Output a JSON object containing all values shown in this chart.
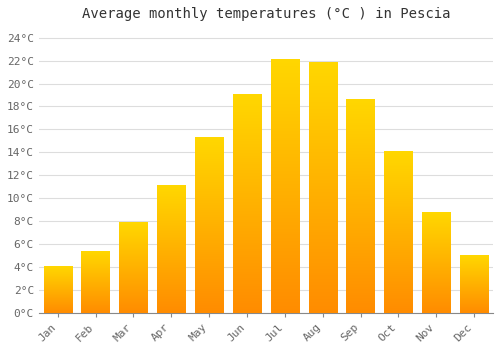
{
  "title": "Average monthly temperatures (°C ) in Pescia",
  "months": [
    "Jan",
    "Feb",
    "Mar",
    "Apr",
    "May",
    "Jun",
    "Jul",
    "Aug",
    "Sep",
    "Oct",
    "Nov",
    "Dec"
  ],
  "values": [
    4.1,
    5.4,
    7.9,
    11.1,
    15.3,
    19.1,
    22.1,
    21.9,
    18.6,
    14.1,
    8.8,
    5.0
  ],
  "bar_color": "#FFA500",
  "bar_color_light": "#FFD700",
  "ylim": [
    0,
    25
  ],
  "yticks": [
    0,
    2,
    4,
    6,
    8,
    10,
    12,
    14,
    16,
    18,
    20,
    22,
    24
  ],
  "background_color": "#FFFFFF",
  "grid_color": "#DDDDDD",
  "title_fontsize": 10,
  "tick_fontsize": 8,
  "font_family": "monospace"
}
